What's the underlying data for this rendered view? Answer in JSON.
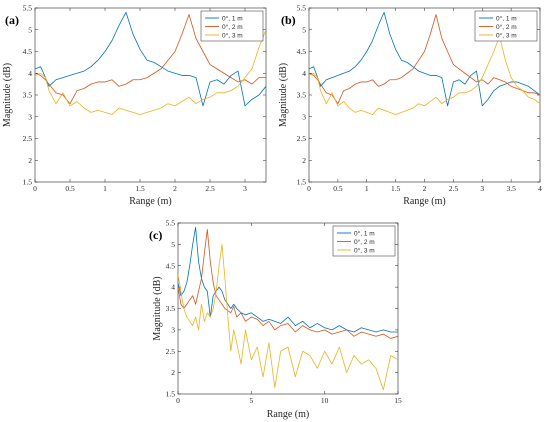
{
  "chart_data": [
    {
      "type": "line",
      "panel_label": "(a)",
      "title": "",
      "xlabel": "Range (m)",
      "ylabel": "Magnitude (dB)",
      "xlim": [
        0,
        3.3
      ],
      "ylim": [
        1.5,
        5.5
      ],
      "xticks": [
        "0",
        "0.5",
        "1",
        "1.5",
        "2",
        "2.5",
        "3"
      ],
      "yticks": [
        "1.5",
        "2",
        "2.5",
        "3",
        "3.5",
        "4",
        "4.5",
        "5",
        "5.5"
      ],
      "xtick_values": [
        0,
        0.5,
        1,
        1.5,
        2,
        2.5,
        3
      ],
      "ytick_values": [
        1.5,
        2,
        2.5,
        3,
        3.5,
        4,
        4.5,
        5,
        5.5
      ],
      "legend_position": "top-right",
      "grid": false,
      "series": [
        {
          "name": "0°, 1 m",
          "color": "#0072BD",
          "x": [
            0,
            0.08,
            0.15,
            0.2,
            0.3,
            0.4,
            0.5,
            0.6,
            0.7,
            0.8,
            0.9,
            1.0,
            1.1,
            1.2,
            1.3,
            1.4,
            1.5,
            1.6,
            1.7,
            1.8,
            1.9,
            2.0,
            2.1,
            2.2,
            2.3,
            2.4,
            2.5,
            2.6,
            2.7,
            2.8,
            2.9,
            3.0,
            3.1,
            3.2,
            3.3
          ],
          "y": [
            4.1,
            4.15,
            3.9,
            3.7,
            3.85,
            3.9,
            3.95,
            4.0,
            4.05,
            4.15,
            4.3,
            4.5,
            4.75,
            5.1,
            5.4,
            4.9,
            4.55,
            4.3,
            4.25,
            4.15,
            4.05,
            4.0,
            3.95,
            3.95,
            3.9,
            3.25,
            3.8,
            3.85,
            3.75,
            3.95,
            4.05,
            3.25,
            3.4,
            3.5,
            3.7
          ]
        },
        {
          "name": "0°, 2 m",
          "color": "#D95319",
          "x": [
            0,
            0.08,
            0.15,
            0.2,
            0.3,
            0.4,
            0.5,
            0.6,
            0.7,
            0.8,
            0.9,
            1.0,
            1.1,
            1.2,
            1.3,
            1.4,
            1.5,
            1.6,
            1.7,
            1.8,
            1.9,
            2.0,
            2.1,
            2.2,
            2.3,
            2.4,
            2.5,
            2.6,
            2.7,
            2.8,
            2.9,
            3.0,
            3.1,
            3.2,
            3.3
          ],
          "y": [
            4.0,
            3.95,
            3.85,
            3.75,
            3.55,
            3.5,
            3.3,
            3.6,
            3.65,
            3.75,
            3.8,
            3.8,
            3.85,
            3.7,
            3.75,
            3.85,
            3.85,
            3.9,
            4.0,
            4.1,
            4.3,
            4.5,
            4.9,
            5.35,
            4.8,
            4.5,
            4.2,
            4.1,
            4.0,
            3.9,
            3.8,
            3.85,
            3.75,
            3.9,
            3.9
          ]
        },
        {
          "name": "0°, 3 m",
          "color": "#EDB120",
          "x": [
            0,
            0.08,
            0.15,
            0.2,
            0.3,
            0.4,
            0.5,
            0.6,
            0.7,
            0.8,
            0.9,
            1.0,
            1.1,
            1.2,
            1.3,
            1.4,
            1.5,
            1.6,
            1.7,
            1.8,
            1.9,
            2.0,
            2.1,
            2.2,
            2.3,
            2.4,
            2.5,
            2.6,
            2.7,
            2.8,
            2.9,
            3.0,
            3.1,
            3.2,
            3.3
          ],
          "y": [
            3.95,
            4.0,
            3.9,
            3.6,
            3.3,
            3.55,
            3.25,
            3.35,
            3.2,
            3.1,
            3.15,
            3.1,
            3.05,
            3.2,
            3.15,
            3.1,
            3.05,
            3.1,
            3.15,
            3.2,
            3.3,
            3.25,
            3.35,
            3.45,
            3.3,
            3.4,
            3.45,
            3.55,
            3.55,
            3.6,
            3.7,
            3.9,
            4.1,
            4.6,
            5.0
          ]
        }
      ]
    },
    {
      "type": "line",
      "panel_label": "(b)",
      "title": "",
      "xlabel": "Range (m)",
      "ylabel": "Magnitude (dB)",
      "xlim": [
        0,
        4
      ],
      "ylim": [
        1.5,
        5.5
      ],
      "xticks": [
        "0",
        "0.5",
        "1",
        "1.5",
        "2",
        "2.5",
        "3",
        "3.5",
        "4"
      ],
      "yticks": [
        "1.5",
        "2",
        "2.5",
        "3",
        "3.5",
        "4",
        "4.5",
        "5",
        "5.5"
      ],
      "xtick_values": [
        0,
        0.5,
        1,
        1.5,
        2,
        2.5,
        3,
        3.5,
        4
      ],
      "ytick_values": [
        1.5,
        2,
        2.5,
        3,
        3.5,
        4,
        4.5,
        5,
        5.5
      ],
      "legend_position": "top-right",
      "grid": false,
      "series": [
        {
          "name": "0°, 1 m",
          "color": "#0072BD",
          "x": [
            0,
            0.08,
            0.15,
            0.2,
            0.3,
            0.4,
            0.5,
            0.6,
            0.7,
            0.8,
            0.9,
            1.0,
            1.1,
            1.2,
            1.3,
            1.4,
            1.5,
            1.6,
            1.7,
            1.8,
            1.9,
            2.0,
            2.1,
            2.2,
            2.3,
            2.4,
            2.5,
            2.6,
            2.7,
            2.8,
            2.9,
            3.0,
            3.1,
            3.2,
            3.3,
            3.4,
            3.5,
            3.6,
            3.7,
            3.8,
            3.9,
            4.0
          ],
          "y": [
            4.1,
            4.15,
            3.9,
            3.7,
            3.85,
            3.9,
            3.95,
            4.0,
            4.05,
            4.15,
            4.3,
            4.5,
            4.75,
            5.1,
            5.4,
            4.9,
            4.55,
            4.3,
            4.25,
            4.15,
            4.05,
            4.0,
            3.95,
            3.95,
            3.9,
            3.25,
            3.8,
            3.85,
            3.75,
            3.95,
            4.05,
            3.25,
            3.4,
            3.6,
            3.7,
            3.75,
            3.8,
            3.8,
            3.75,
            3.7,
            3.6,
            3.5
          ]
        },
        {
          "name": "0°, 2 m",
          "color": "#D95319",
          "x": [
            0,
            0.08,
            0.15,
            0.2,
            0.3,
            0.4,
            0.5,
            0.6,
            0.7,
            0.8,
            0.9,
            1.0,
            1.1,
            1.2,
            1.3,
            1.4,
            1.5,
            1.6,
            1.7,
            1.8,
            1.9,
            2.0,
            2.1,
            2.2,
            2.3,
            2.4,
            2.5,
            2.6,
            2.7,
            2.8,
            2.9,
            3.0,
            3.1,
            3.2,
            3.3,
            3.4,
            3.5,
            3.6,
            3.7,
            3.8,
            3.9,
            4.0
          ],
          "y": [
            4.0,
            3.95,
            3.85,
            3.75,
            3.55,
            3.5,
            3.3,
            3.6,
            3.65,
            3.75,
            3.8,
            3.8,
            3.85,
            3.7,
            3.75,
            3.85,
            3.85,
            3.9,
            4.0,
            4.1,
            4.3,
            4.5,
            4.9,
            5.35,
            4.8,
            4.5,
            4.2,
            4.1,
            4.0,
            3.9,
            3.8,
            3.85,
            3.75,
            3.9,
            3.85,
            3.8,
            3.7,
            3.65,
            3.6,
            3.55,
            3.55,
            3.5
          ]
        },
        {
          "name": "0°, 3 m",
          "color": "#EDB120",
          "x": [
            0,
            0.08,
            0.15,
            0.2,
            0.3,
            0.4,
            0.5,
            0.6,
            0.7,
            0.8,
            0.9,
            1.0,
            1.1,
            1.2,
            1.3,
            1.4,
            1.5,
            1.6,
            1.7,
            1.8,
            1.9,
            2.0,
            2.1,
            2.2,
            2.3,
            2.4,
            2.5,
            2.6,
            2.7,
            2.8,
            2.9,
            3.0,
            3.1,
            3.2,
            3.3,
            3.4,
            3.5,
            3.6,
            3.7,
            3.8,
            3.9,
            4.0
          ],
          "y": [
            3.95,
            4.0,
            3.9,
            3.6,
            3.3,
            3.55,
            3.25,
            3.35,
            3.2,
            3.1,
            3.15,
            3.1,
            3.05,
            3.2,
            3.15,
            3.1,
            3.05,
            3.1,
            3.15,
            3.2,
            3.3,
            3.25,
            3.35,
            3.45,
            3.3,
            3.4,
            3.45,
            3.55,
            3.55,
            3.6,
            3.7,
            3.9,
            4.2,
            4.5,
            4.85,
            4.3,
            3.9,
            3.7,
            3.6,
            3.45,
            3.4,
            3.3
          ]
        }
      ]
    },
    {
      "type": "line",
      "panel_label": "(c)",
      "title": "",
      "xlabel": "Range (m)",
      "ylabel": "Magnitude (dB)",
      "xlim": [
        0,
        15
      ],
      "ylim": [
        1.5,
        5.5
      ],
      "xticks": [
        "0",
        "5",
        "10",
        "15"
      ],
      "yticks": [
        "1.5",
        "2",
        "2.5",
        "3",
        "3.5",
        "4",
        "4.5",
        "5",
        "5.5"
      ],
      "xtick_values": [
        0,
        5,
        10,
        15
      ],
      "ytick_values": [
        1.5,
        2,
        2.5,
        3,
        3.5,
        4,
        4.5,
        5,
        5.5
      ],
      "legend_position": "top-right",
      "grid": false,
      "series": [
        {
          "name": "0°, 1 m",
          "color": "#0072BD",
          "x": [
            0,
            0.2,
            0.4,
            0.6,
            0.8,
            1.0,
            1.2,
            1.4,
            1.6,
            1.8,
            2.0,
            2.2,
            2.4,
            2.6,
            2.8,
            3.0,
            3.2,
            3.4,
            3.6,
            3.8,
            4.0,
            4.3,
            4.6,
            5.0,
            5.4,
            5.8,
            6.2,
            6.6,
            7.0,
            7.5,
            8.0,
            8.5,
            9.0,
            9.5,
            10.0,
            10.5,
            11.0,
            11.5,
            12.0,
            12.5,
            13.0,
            13.5,
            14.0,
            14.5,
            15.0
          ],
          "y": [
            4.1,
            3.8,
            3.9,
            4.1,
            4.5,
            5.0,
            5.4,
            4.6,
            4.2,
            4.0,
            3.9,
            3.3,
            3.8,
            3.9,
            4.0,
            3.9,
            3.7,
            3.6,
            3.5,
            3.6,
            3.5,
            3.4,
            3.35,
            3.4,
            3.3,
            3.2,
            3.25,
            3.2,
            3.15,
            3.3,
            3.1,
            3.2,
            3.05,
            3.15,
            3.05,
            3.0,
            3.1,
            3.0,
            2.95,
            3.05,
            3.0,
            2.95,
            3.0,
            2.95,
            2.95
          ]
        },
        {
          "name": "0°, 2 m",
          "color": "#D95319",
          "x": [
            0,
            0.2,
            0.4,
            0.6,
            0.8,
            1.0,
            1.2,
            1.4,
            1.6,
            1.8,
            2.0,
            2.2,
            2.4,
            2.6,
            2.8,
            3.0,
            3.2,
            3.4,
            3.6,
            3.8,
            4.0,
            4.3,
            4.6,
            5.0,
            5.4,
            5.8,
            6.2,
            6.6,
            7.0,
            7.5,
            8.0,
            8.5,
            9.0,
            9.5,
            10.0,
            10.5,
            11.0,
            11.5,
            12.0,
            12.5,
            13.0,
            13.5,
            14.0,
            14.5,
            15.0
          ],
          "y": [
            4.0,
            3.6,
            3.5,
            3.6,
            3.7,
            3.8,
            3.6,
            3.9,
            4.2,
            4.8,
            5.35,
            4.6,
            4.1,
            3.8,
            3.7,
            3.6,
            3.5,
            3.45,
            3.4,
            3.55,
            3.3,
            3.4,
            3.2,
            3.3,
            3.25,
            3.1,
            3.2,
            3.0,
            3.1,
            3.15,
            2.95,
            3.1,
            3.0,
            2.95,
            3.0,
            2.9,
            2.95,
            3.0,
            2.85,
            2.95,
            2.9,
            2.85,
            2.9,
            2.8,
            2.85
          ]
        },
        {
          "name": "0°, 3 m",
          "color": "#EDB120",
          "x": [
            0,
            0.2,
            0.4,
            0.6,
            0.8,
            1.0,
            1.2,
            1.4,
            1.6,
            1.8,
            2.0,
            2.2,
            2.4,
            2.6,
            2.8,
            3.0,
            3.2,
            3.4,
            3.6,
            3.8,
            4.0,
            4.3,
            4.6,
            5.0,
            5.4,
            5.8,
            6.2,
            6.6,
            7.0,
            7.5,
            8.0,
            8.5,
            9.0,
            9.5,
            10.0,
            10.5,
            11.0,
            11.5,
            12.0,
            12.5,
            13.0,
            13.5,
            14.0,
            14.5,
            15.0
          ],
          "y": [
            4.3,
            3.9,
            3.5,
            3.3,
            3.2,
            3.1,
            3.3,
            3.0,
            3.6,
            3.2,
            3.4,
            3.3,
            3.5,
            3.9,
            4.5,
            5.0,
            4.2,
            3.3,
            2.5,
            3.0,
            2.7,
            2.2,
            3.0,
            2.3,
            2.6,
            1.9,
            2.7,
            1.65,
            2.5,
            2.6,
            1.9,
            2.5,
            2.4,
            2.1,
            2.5,
            2.2,
            2.6,
            2.0,
            2.4,
            2.2,
            2.3,
            2.1,
            1.6,
            2.4,
            2.3
          ]
        }
      ]
    }
  ]
}
